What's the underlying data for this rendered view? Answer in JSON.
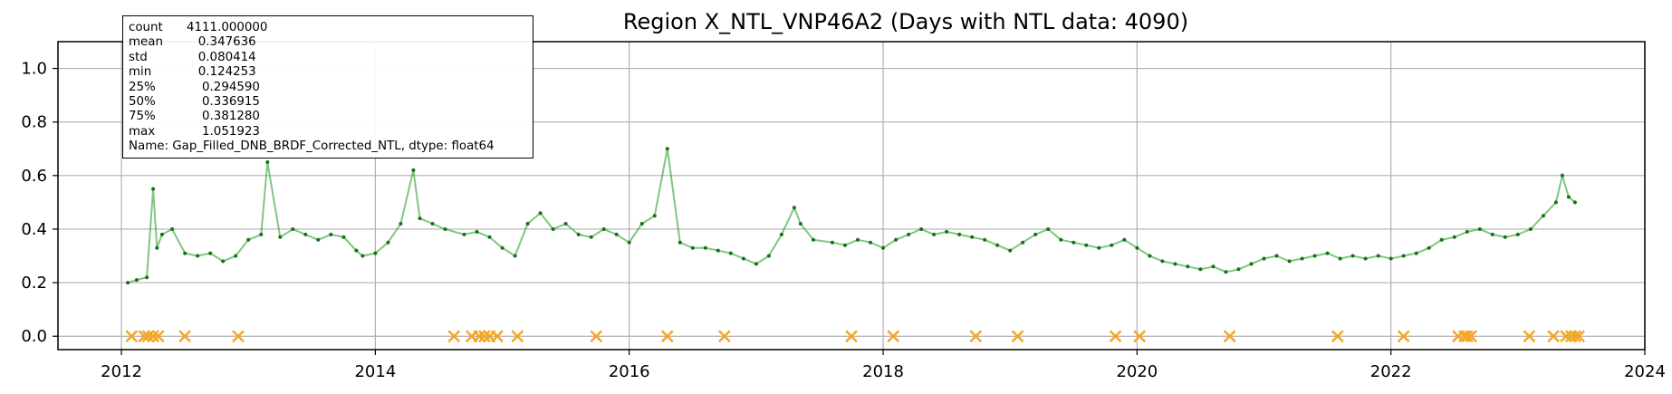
{
  "chart_data": {
    "type": "line",
    "title": "Region X_NTL_VNP46A2 (Days with NTL data: 4090)",
    "xlabel": "",
    "ylabel": "",
    "xlim": [
      2011.5,
      2024.0
    ],
    "ylim": [
      -0.05,
      1.1
    ],
    "xticks": [
      "2012",
      "2014",
      "2016",
      "2018",
      "2020",
      "2022",
      "2024"
    ],
    "yticks": [
      "0.0",
      "0.2",
      "0.4",
      "0.6",
      "0.8",
      "1.0"
    ],
    "grid": true,
    "series": [
      {
        "kind": "line-with-points",
        "color": "#2e9e2e",
        "x": [
          2012.05,
          2012.12,
          2012.2,
          2012.25,
          2012.28,
          2012.32,
          2012.4,
          2012.5,
          2012.6,
          2012.7,
          2012.8,
          2012.9,
          2013.0,
          2013.1,
          2013.15,
          2013.25,
          2013.35,
          2013.45,
          2013.55,
          2013.65,
          2013.75,
          2013.85,
          2013.9,
          2014.0,
          2014.1,
          2014.2,
          2014.3,
          2014.35,
          2014.45,
          2014.55,
          2014.7,
          2014.8,
          2014.9,
          2015.0,
          2015.1,
          2015.2,
          2015.3,
          2015.4,
          2015.5,
          2015.6,
          2015.7,
          2015.8,
          2015.9,
          2016.0,
          2016.1,
          2016.2,
          2016.3,
          2016.4,
          2016.5,
          2016.6,
          2016.7,
          2016.8,
          2016.9,
          2017.0,
          2017.1,
          2017.2,
          2017.3,
          2017.35,
          2017.45,
          2017.6,
          2017.7,
          2017.8,
          2017.9,
          2018.0,
          2018.1,
          2018.2,
          2018.3,
          2018.4,
          2018.5,
          2018.6,
          2018.7,
          2018.8,
          2018.9,
          2019.0,
          2019.1,
          2019.2,
          2019.3,
          2019.4,
          2019.5,
          2019.6,
          2019.7,
          2019.8,
          2019.9,
          2020.0,
          2020.1,
          2020.2,
          2020.3,
          2020.4,
          2020.5,
          2020.6,
          2020.7,
          2020.8,
          2020.9,
          2021.0,
          2021.1,
          2021.2,
          2021.3,
          2021.4,
          2021.5,
          2021.6,
          2021.7,
          2021.8,
          2021.9,
          2022.0,
          2022.1,
          2022.2,
          2022.3,
          2022.4,
          2022.5,
          2022.6,
          2022.7,
          2022.8,
          2022.9,
          2023.0,
          2023.1,
          2023.2,
          2023.3,
          2023.35,
          2023.4,
          2023.45
        ],
        "y": [
          0.2,
          0.21,
          0.22,
          0.55,
          0.33,
          0.38,
          0.4,
          0.31,
          0.3,
          0.31,
          0.28,
          0.3,
          0.36,
          0.38,
          0.65,
          0.37,
          0.4,
          0.38,
          0.36,
          0.38,
          0.37,
          0.32,
          0.3,
          0.31,
          0.35,
          0.42,
          0.62,
          0.44,
          0.42,
          0.4,
          0.38,
          0.39,
          0.37,
          0.33,
          0.3,
          0.42,
          0.46,
          0.4,
          0.42,
          0.38,
          0.37,
          0.4,
          0.38,
          0.35,
          0.42,
          0.45,
          0.7,
          0.35,
          0.33,
          0.33,
          0.32,
          0.31,
          0.29,
          0.27,
          0.3,
          0.38,
          0.48,
          0.42,
          0.36,
          0.35,
          0.34,
          0.36,
          0.35,
          0.33,
          0.36,
          0.38,
          0.4,
          0.38,
          0.39,
          0.38,
          0.37,
          0.36,
          0.34,
          0.32,
          0.35,
          0.38,
          0.4,
          0.36,
          0.35,
          0.34,
          0.33,
          0.34,
          0.36,
          0.33,
          0.3,
          0.28,
          0.27,
          0.26,
          0.25,
          0.26,
          0.24,
          0.25,
          0.27,
          0.29,
          0.3,
          0.28,
          0.29,
          0.3,
          0.31,
          0.29,
          0.3,
          0.29,
          0.3,
          0.29,
          0.3,
          0.31,
          0.33,
          0.36,
          0.37,
          0.39,
          0.4,
          0.38,
          0.37,
          0.38,
          0.4,
          0.45,
          0.5,
          0.6,
          0.52,
          0.5
        ]
      },
      {
        "kind": "markers-x",
        "color": "#f5a623",
        "x": [
          2012.08,
          2012.18,
          2012.21,
          2012.25,
          2012.29,
          2012.5,
          2012.92,
          2014.62,
          2014.76,
          2014.82,
          2014.86,
          2014.9,
          2014.96,
          2015.12,
          2015.74,
          2016.3,
          2016.75,
          2017.75,
          2018.08,
          2018.73,
          2019.06,
          2019.83,
          2020.02,
          2020.73,
          2021.58,
          2022.1,
          2022.53,
          2022.58,
          2022.6,
          2022.63,
          2023.09,
          2023.28,
          2023.38,
          2023.42,
          2023.45,
          2023.48
        ],
        "y": [
          0,
          0,
          0,
          0,
          0,
          0,
          0,
          0,
          0,
          0,
          0,
          0,
          0,
          0,
          0,
          0,
          0,
          0,
          0,
          0,
          0,
          0,
          0,
          0,
          0,
          0,
          0,
          0,
          0,
          0,
          0,
          0,
          0,
          0,
          0,
          0
        ]
      }
    ],
    "annotation_box": {
      "rows": [
        {
          "key": "count",
          "value": "4111.000000"
        },
        {
          "key": "mean",
          "value": "   0.347636"
        },
        {
          "key": "std",
          "value": "   0.080414"
        },
        {
          "key": "min",
          "value": "   0.124253"
        },
        {
          "key": "25%",
          "value": "    0.294590"
        },
        {
          "key": "50%",
          "value": "    0.336915"
        },
        {
          "key": "75%",
          "value": "    0.381280"
        },
        {
          "key": "max",
          "value": "    1.051923"
        }
      ],
      "footer": "Name: Gap_Filled_DNB_BRDF_Corrected_NTL, dtype: float64"
    }
  }
}
